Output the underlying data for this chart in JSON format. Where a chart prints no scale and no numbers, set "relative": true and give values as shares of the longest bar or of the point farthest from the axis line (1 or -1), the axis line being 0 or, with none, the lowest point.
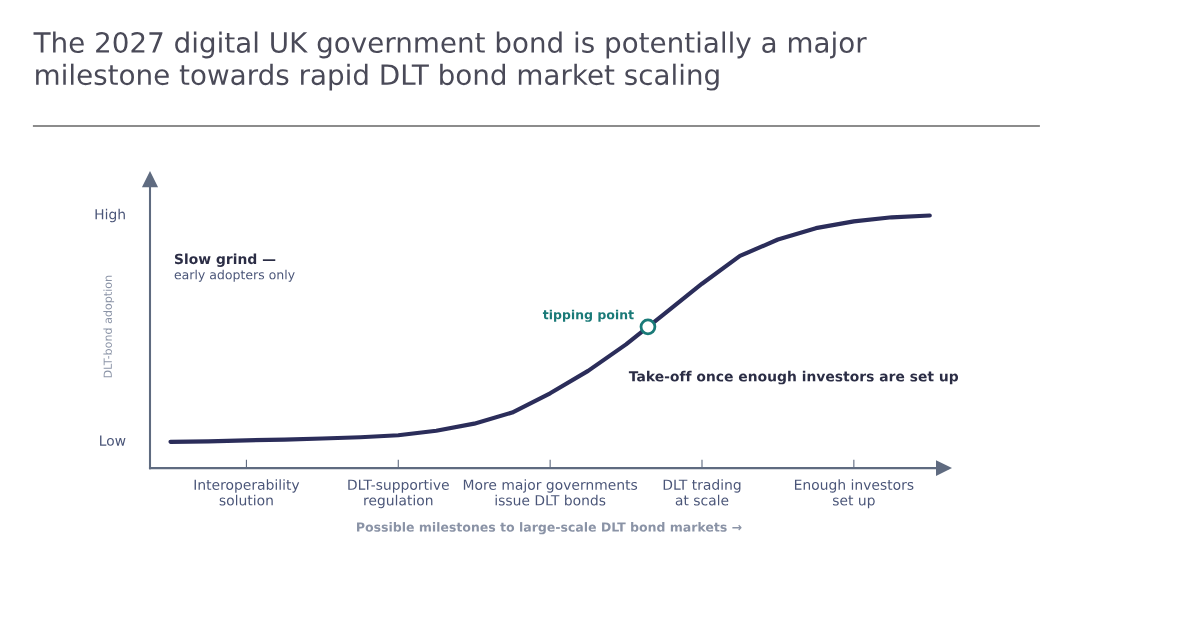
{
  "chart_data": {
    "type": "line",
    "relative": true,
    "title": "The 2027 digital UK government bond is potentially a major\nmilestone towards rapid DLT bond market scaling",
    "xlabel": "Possible milestones to large-scale DLT bond markets →",
    "ylabel": "DLT-bond adoption",
    "categories": [
      null,
      null,
      "Interoperability\nsolution",
      null,
      null,
      null,
      "DLT-supportive\nregulation",
      null,
      null,
      null,
      "More major governments\nissue DLT bonds",
      null,
      null,
      null,
      "DLT trading\nat scale",
      null,
      null,
      null,
      "Enough investors\nset up",
      null,
      null
    ],
    "series": [
      {
        "color": "#2b2d5a",
        "values": [
          0.104,
          0.106,
          0.11,
          0.113,
          0.117,
          0.122,
          0.13,
          0.148,
          0.176,
          0.22,
          0.296,
          0.385,
          0.49,
          0.61,
          0.73,
          0.84,
          0.905,
          0.95,
          0.977,
          0.993,
          1.0
        ]
      }
    ],
    "grid": false,
    "legend": false,
    "marker": "none",
    "line_style": "solid",
    "annotations": [
      "High",
      "Low",
      "Slow grind —",
      "early adopters only",
      "tipping point",
      "Take-off once enough investors are set up"
    ]
  }
}
